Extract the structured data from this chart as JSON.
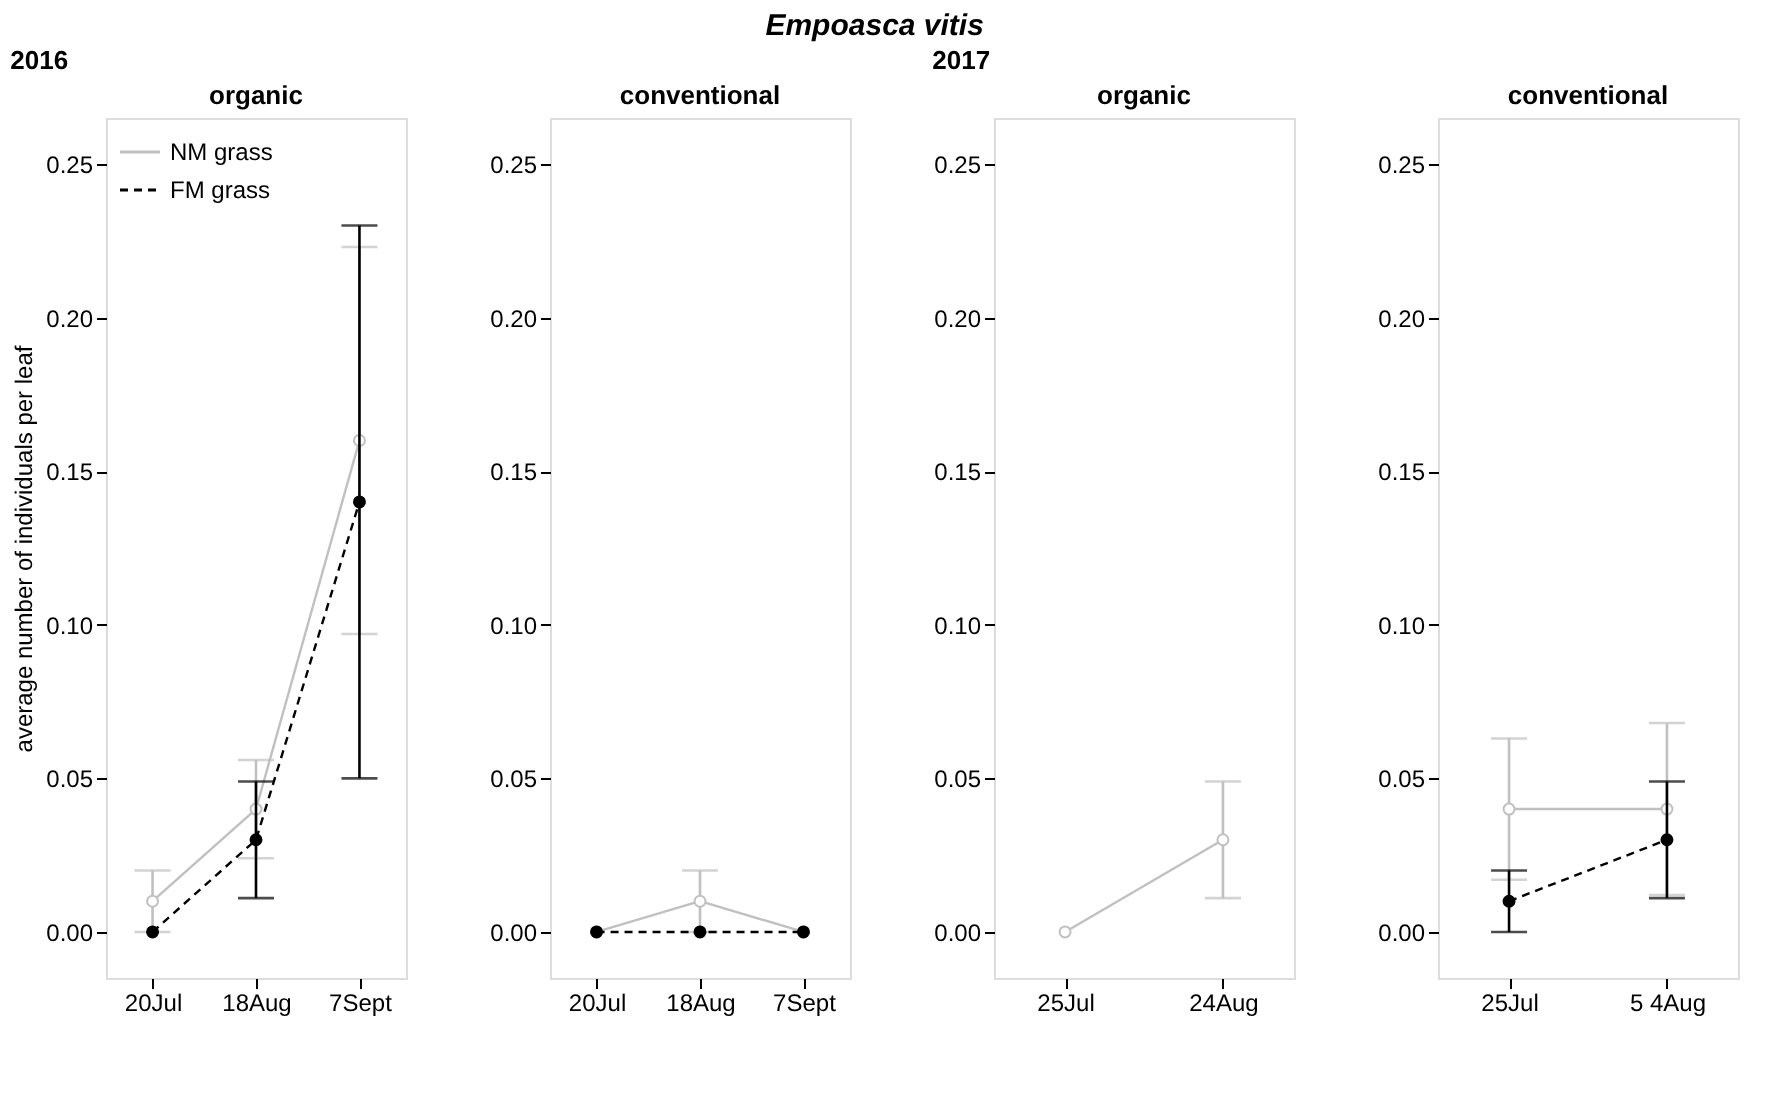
{
  "chart_data": [
    {
      "type": "line",
      "title": "organic",
      "subtitle": "2016",
      "annotations": [
        "Empoasca vitis"
      ],
      "ylabel": "average number of individuals per leaf",
      "categories": [
        "20Jul",
        "18Aug",
        "7Sept"
      ],
      "ylim": [
        -0.015,
        0.265
      ],
      "yticks": [
        {
          "value": 0,
          "label": "0.00"
        },
        {
          "value": 0.05,
          "label": "0.05"
        },
        {
          "value": 0.1,
          "label": "0.10"
        },
        {
          "value": 0.15,
          "label": "0.15"
        },
        {
          "value": 0.2,
          "label": "0.20"
        },
        {
          "value": 0.25,
          "label": "0.25"
        }
      ],
      "legend": "top left",
      "marker": "circle",
      "grid": false,
      "series": [
        {
          "name": "NM  grass",
          "color": "#c0c0c0",
          "line_style": "solid",
          "values": [
            0.01,
            0.04,
            0.16
          ],
          "errors": [
            [
              0.0,
              0.02
            ],
            [
              0.024,
              0.056
            ],
            [
              0.097,
              0.223
            ]
          ]
        },
        {
          "name": "FM  grass",
          "color": "#000000",
          "line_style": "dashed",
          "values": [
            0.0,
            0.03,
            0.14
          ],
          "errors": [
            null,
            [
              0.011,
              0.049
            ],
            [
              0.05,
              0.23
            ]
          ]
        }
      ]
    },
    {
      "type": "line",
      "title": "conventional",
      "categories": [
        "20Jul",
        "18Aug",
        "7Sept"
      ],
      "ylim": [
        -0.015,
        0.265
      ],
      "yticks": [
        {
          "value": 0,
          "label": "0.00"
        },
        {
          "value": 0.05,
          "label": "0.05"
        },
        {
          "value": 0.1,
          "label": "0.10"
        },
        {
          "value": 0.15,
          "label": "0.15"
        },
        {
          "value": 0.2,
          "label": "0.20"
        },
        {
          "value": 0.25,
          "label": "0.25"
        }
      ],
      "marker": "circle",
      "grid": false,
      "series": [
        {
          "color": "#c0c0c0",
          "line_style": "solid",
          "values": [
            0.0,
            0.01,
            0.0
          ],
          "errors": [
            null,
            [
              0.0,
              0.02
            ],
            null
          ]
        },
        {
          "color": "#000000",
          "line_style": "dashed",
          "values": [
            0.0,
            0.0,
            0.0
          ],
          "errors": [
            null,
            null,
            null
          ]
        }
      ]
    },
    {
      "type": "line",
      "title": "organic",
      "subtitle": "2017",
      "categories": [
        "25Jul",
        "24Aug"
      ],
      "ylim": [
        -0.015,
        0.265
      ],
      "yticks": [
        {
          "value": 0,
          "label": "0.00"
        },
        {
          "value": 0.05,
          "label": "0.05"
        },
        {
          "value": 0.1,
          "label": "0.10"
        },
        {
          "value": 0.15,
          "label": "0.15"
        },
        {
          "value": 0.2,
          "label": "0.20"
        },
        {
          "value": 0.25,
          "label": "0.25"
        }
      ],
      "marker": "circle",
      "grid": false,
      "series": [
        {
          "color": "#c0c0c0",
          "line_style": "solid",
          "values": [
            0.0,
            0.03
          ],
          "errors": [
            null,
            [
              0.011,
              0.049
            ]
          ]
        }
      ]
    },
    {
      "type": "line",
      "title": "conventional",
      "categories": [
        "25Jul",
        "5 4Aug"
      ],
      "ylim": [
        -0.015,
        0.265
      ],
      "yticks": [
        {
          "value": 0,
          "label": "0.00"
        },
        {
          "value": 0.05,
          "label": "0.05"
        },
        {
          "value": 0.1,
          "label": "0.10"
        },
        {
          "value": 0.15,
          "label": "0.15"
        },
        {
          "value": 0.2,
          "label": "0.20"
        },
        {
          "value": 0.25,
          "label": "0.25"
        }
      ],
      "marker": "circle",
      "grid": false,
      "series": [
        {
          "color": "#c0c0c0",
          "line_style": "solid",
          "values": [
            0.04,
            0.04
          ],
          "errors": [
            [
              0.017,
              0.063
            ],
            [
              0.012,
              0.068
            ]
          ]
        },
        {
          "color": "#000000",
          "line_style": "dashed",
          "values": [
            0.01,
            0.03
          ],
          "errors": [
            [
              0.0,
              0.02
            ],
            [
              0.011,
              0.049
            ]
          ]
        }
      ]
    }
  ]
}
